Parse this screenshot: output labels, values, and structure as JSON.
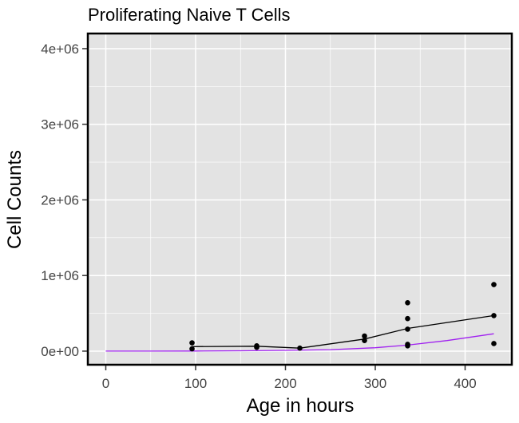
{
  "chart_data": {
    "type": "scatter",
    "title": "Proliferating Naive T Cells",
    "xlabel": "Age in hours",
    "ylabel": "Cell Counts",
    "xlim": [
      -20,
      452
    ],
    "ylim": [
      -180000,
      4200000
    ],
    "x_ticks": [
      0,
      100,
      200,
      300,
      400
    ],
    "x_tick_labels": [
      "0",
      "100",
      "200",
      "300",
      "400"
    ],
    "y_ticks": [
      0,
      1000000,
      2000000,
      3000000,
      4000000
    ],
    "y_tick_labels": [
      "0e+00",
      "1e+06",
      "2e+06",
      "3e+06",
      "4e+06"
    ],
    "grid": true,
    "panel_background": "#e3e3e3",
    "grid_color": "#ffffff",
    "points": {
      "color": "#000000",
      "x": [
        96,
        96,
        168,
        168,
        216,
        288,
        288,
        336,
        336,
        336,
        336,
        336,
        432,
        432,
        432
      ],
      "y": [
        110000,
        30000,
        70000,
        50000,
        40000,
        200000,
        140000,
        640000,
        430000,
        290000,
        90000,
        70000,
        880000,
        470000,
        100000
      ]
    },
    "series": [
      {
        "color": "#000000",
        "x": [
          96,
          168,
          216,
          288,
          336,
          432
        ],
        "y": [
          60000,
          65000,
          40000,
          160000,
          300000,
          470000
        ]
      },
      {
        "color": "#a020f0",
        "x": [
          0,
          50,
          100,
          150,
          200,
          250,
          300,
          336,
          380,
          432
        ],
        "y": [
          0,
          0,
          2000,
          5000,
          10000,
          20000,
          45000,
          80000,
          140000,
          230000
        ]
      }
    ]
  }
}
